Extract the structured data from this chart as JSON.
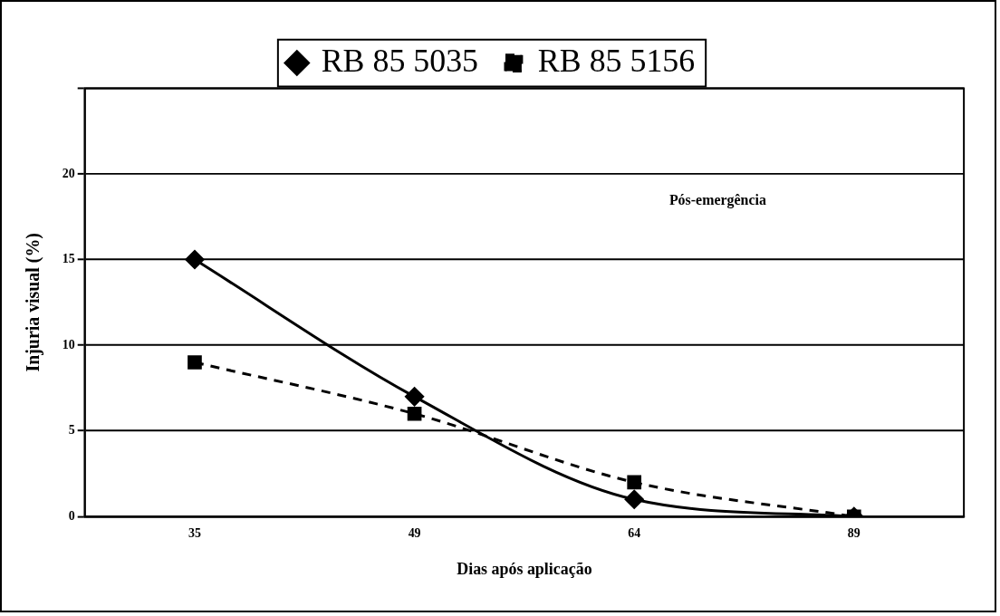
{
  "chart_data": {
    "type": "line",
    "categories": [
      "35",
      "49",
      "64",
      "89"
    ],
    "series": [
      {
        "name": "RB 85 5035",
        "color": "#000000",
        "values": [
          15,
          7,
          1,
          0
        ],
        "marker": "diamond",
        "line_style": "solid"
      },
      {
        "name": "RB 85 5156",
        "color": "#000000",
        "values": [
          9,
          6,
          2,
          0
        ],
        "marker": "square",
        "line_style": "dashed"
      }
    ],
    "xlabel": "Dias após aplicação",
    "ylabel": "Injuria visual (%)",
    "ylim": [
      0,
      25
    ],
    "yticks": [
      0,
      5,
      10,
      15,
      20,
      {
        "value": 25,
        "label": null
      }
    ],
    "grid": "y",
    "legend": "top",
    "annotations": [
      "Pós-emergência"
    ]
  }
}
